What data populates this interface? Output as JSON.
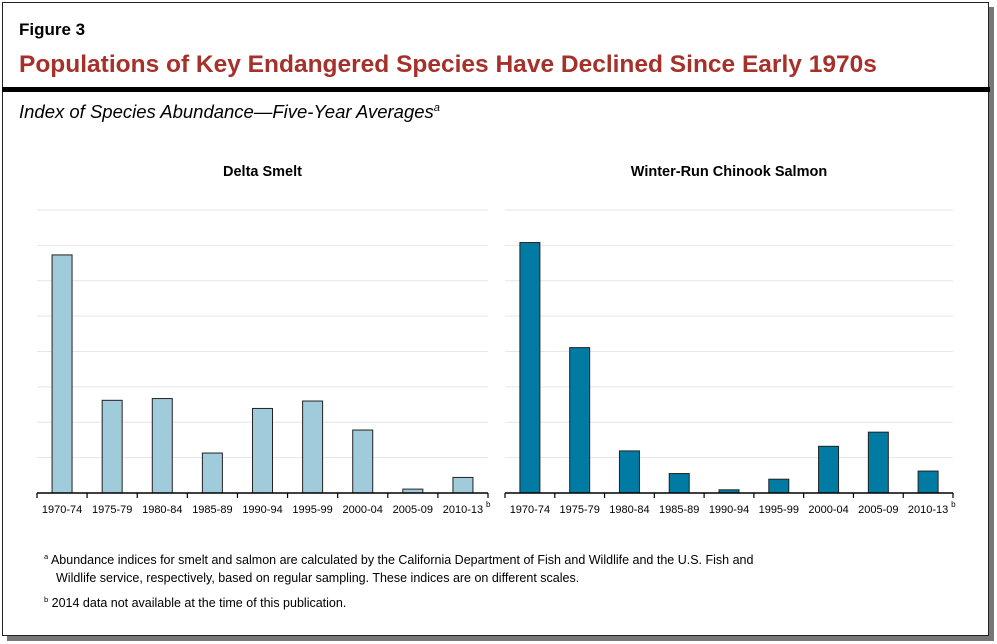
{
  "figure_label": "Figure 3",
  "title": "Populations of Key Endangered Species Have Declined Since Early 1970s",
  "subtitle": "Index of Species Abundance—Five-Year Averages",
  "subtitle_note": "a",
  "colors": {
    "title": "#a6302a",
    "smelt_bar": "#9fcbdb",
    "salmon_bar": "#007ba3",
    "gridline": "#e6e6e6"
  },
  "chart_data": [
    {
      "type": "bar",
      "title": "Delta Smelt",
      "categories": [
        "1970-74",
        "1975-79",
        "1980-84",
        "1985-89",
        "1990-94",
        "1995-99",
        "2000-04",
        "2005-09",
        "2010-13"
      ],
      "last_category_note": "b",
      "values": [
        6.73,
        2.62,
        2.67,
        1.13,
        2.39,
        2.6,
        1.78,
        0.11,
        0.44
      ],
      "ylim": [
        0,
        8
      ],
      "grid": true,
      "y_tick_labels": false,
      "xlabel": "",
      "ylabel": ""
    },
    {
      "type": "bar",
      "title": "Winter-Run Chinook Salmon",
      "categories": [
        "1970-74",
        "1975-79",
        "1980-84",
        "1985-89",
        "1990-94",
        "1995-99",
        "2000-04",
        "2005-09",
        "2010-13"
      ],
      "last_category_note": "b",
      "values": [
        7.08,
        4.11,
        1.19,
        0.55,
        0.09,
        0.39,
        1.32,
        1.72,
        0.62
      ],
      "ylim": [
        0,
        8
      ],
      "grid": true,
      "y_tick_labels": false,
      "xlabel": "",
      "ylabel": ""
    }
  ],
  "footnotes": [
    {
      "mark": "a",
      "text_line1": "Abundance indices for smelt and salmon are calculated by the California Department of Fish and Wildlife and the U.S. Fish and",
      "text_line2": "Wildlife service, respectively, based on regular sampling. These indices are on different scales."
    },
    {
      "mark": "b",
      "text_line1": "2014 data not available at the time of this publication."
    }
  ]
}
